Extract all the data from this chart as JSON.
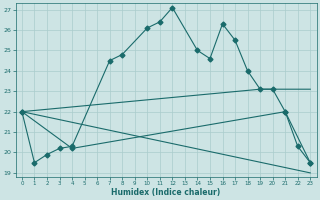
{
  "xlabel": "Humidex (Indice chaleur)",
  "xlim": [
    -0.5,
    23.5
  ],
  "ylim": [
    18.8,
    27.3
  ],
  "yticks": [
    19,
    20,
    21,
    22,
    23,
    24,
    25,
    26,
    27
  ],
  "xticks": [
    0,
    1,
    2,
    3,
    4,
    5,
    6,
    7,
    8,
    9,
    10,
    11,
    12,
    13,
    14,
    15,
    16,
    17,
    18,
    19,
    20,
    21,
    22,
    23
  ],
  "bg_color": "#cde4e4",
  "grid_color": "#aacccc",
  "line_color": "#1a6b6b",
  "curve1_x": [
    0,
    1,
    2,
    3,
    4,
    7,
    8,
    10,
    11,
    12,
    14,
    15,
    16,
    17,
    18,
    19,
    20,
    21,
    22,
    23
  ],
  "curve1_y": [
    22.0,
    19.5,
    19.9,
    20.2,
    20.3,
    24.5,
    24.8,
    26.1,
    26.4,
    27.1,
    25.0,
    24.6,
    26.3,
    25.5,
    24.0,
    23.1,
    23.1,
    22.0,
    20.3,
    19.5
  ],
  "curve2_x": [
    0,
    4,
    21,
    23
  ],
  "curve2_y": [
    22.0,
    20.2,
    22.0,
    19.5
  ],
  "curve3_x": [
    0,
    19,
    23
  ],
  "curve3_y": [
    22.0,
    23.1,
    23.1
  ],
  "curve4_x": [
    0,
    23
  ],
  "curve4_y": [
    22.0,
    19.0
  ]
}
